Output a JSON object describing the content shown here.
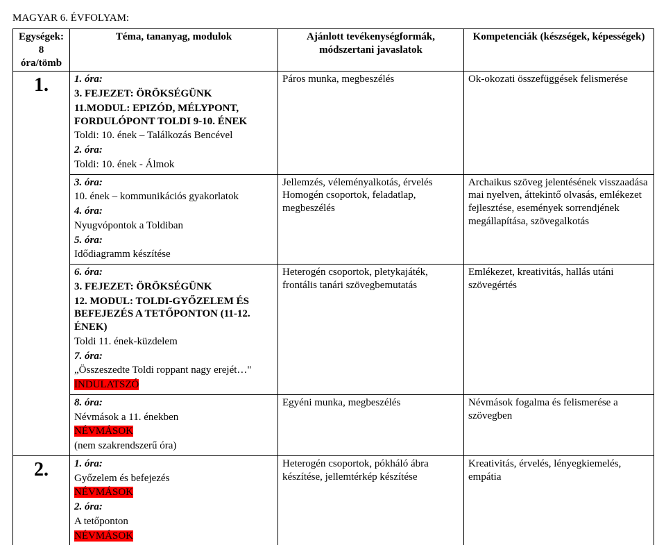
{
  "page_title": "MAGYAR 6. ÉVFOLYAM:",
  "headers": {
    "units": "Egységek: 8 óra/tömb",
    "topic": "Téma, tananyag, modulok",
    "activities": "Ajánlott tevékenységformák, módszertani javaslatok",
    "competencies": "Kompetenciák (készségek, képességek)"
  },
  "unit1": {
    "num": "1.",
    "r1": {
      "t_l1": "1. óra:",
      "t_l2": "3. FEJEZET: ÖRÖKSÉGÜNK",
      "t_l3": "11.MODUL: EPIZÓD, MÉLYPONT, FORDULÓPONT TOLDI 9-10. ÉNEK",
      "t_l4": "Toldi: 10. ének – Találkozás Bencével",
      "t_l5": "2. óra:",
      "t_l6": "Toldi: 10. ének - Álmok",
      "a": "Páros munka, megbeszélés",
      "c": "Ok-okozati összefüggések felismerése"
    },
    "r2": {
      "t_l1": "3. óra:",
      "t_l2": "10. ének – kommunikációs gyakorlatok",
      "t_l3": "4. óra:",
      "t_l4": "Nyugvópontok a Toldiban",
      "t_l5": "5. óra:",
      "t_l6": "Idődiagramm készítése",
      "a_l1": "Jellemzés, véleményalkotás, érvelés",
      "a_l2": "Homogén csoportok, feladatlap, megbeszélés",
      "c": "Archaikus szöveg jelentésének visszaadása mai nyelven, áttekintő olvasás, emlékezet fejlesztése, események sorrendjének megállapítása, szövegalkotás"
    },
    "r3": {
      "t_l1": "6. óra:",
      "t_l2": "3. FEJEZET: ÖRÖKSÉGÜNK",
      "t_l3": "12. MODUL: TOLDI-GYŐZELEM ÉS BEFEJEZÉS A TETŐPONTON (11-12. ÉNEK)",
      "t_l4": "Toldi 11. ének-küzdelem",
      "t_l5": "7. óra:",
      "t_l6": "„Összeszedte Toldi roppant nagy erejét…\"",
      "t_l7": "INDULATSZÓ",
      "a": "Heterogén csoportok, pletykajáték, frontális tanári szövegbemutatás",
      "c": "Emlékezet, kreativitás, hallás utáni szövegértés"
    },
    "r4": {
      "t_l1": "8. óra:",
      "t_l2": "Névmások a 11. énekben",
      "t_l3": "NÉVMÁSOK",
      "t_l4": "(nem szakrendszerű óra)",
      "a": "Egyéni munka, megbeszélés",
      "c": "Névmások fogalma és felismerése a szövegben"
    }
  },
  "unit2": {
    "num": "2.",
    "r1": {
      "t_l1": "1. óra:",
      "t_l2": "Győzelem és befejezés",
      "t_l3": "NÉVMÁSOK",
      "t_l4": "2. óra:",
      "t_l5": "A tetőponton",
      "t_l6": "NÉVMÁSOK",
      "a": "Heterogén csoportok, pókháló ábra készítése, jellemtérkép készítése",
      "c": "Kreativitás, érvelés, lényegkiemelés, empátia"
    }
  }
}
